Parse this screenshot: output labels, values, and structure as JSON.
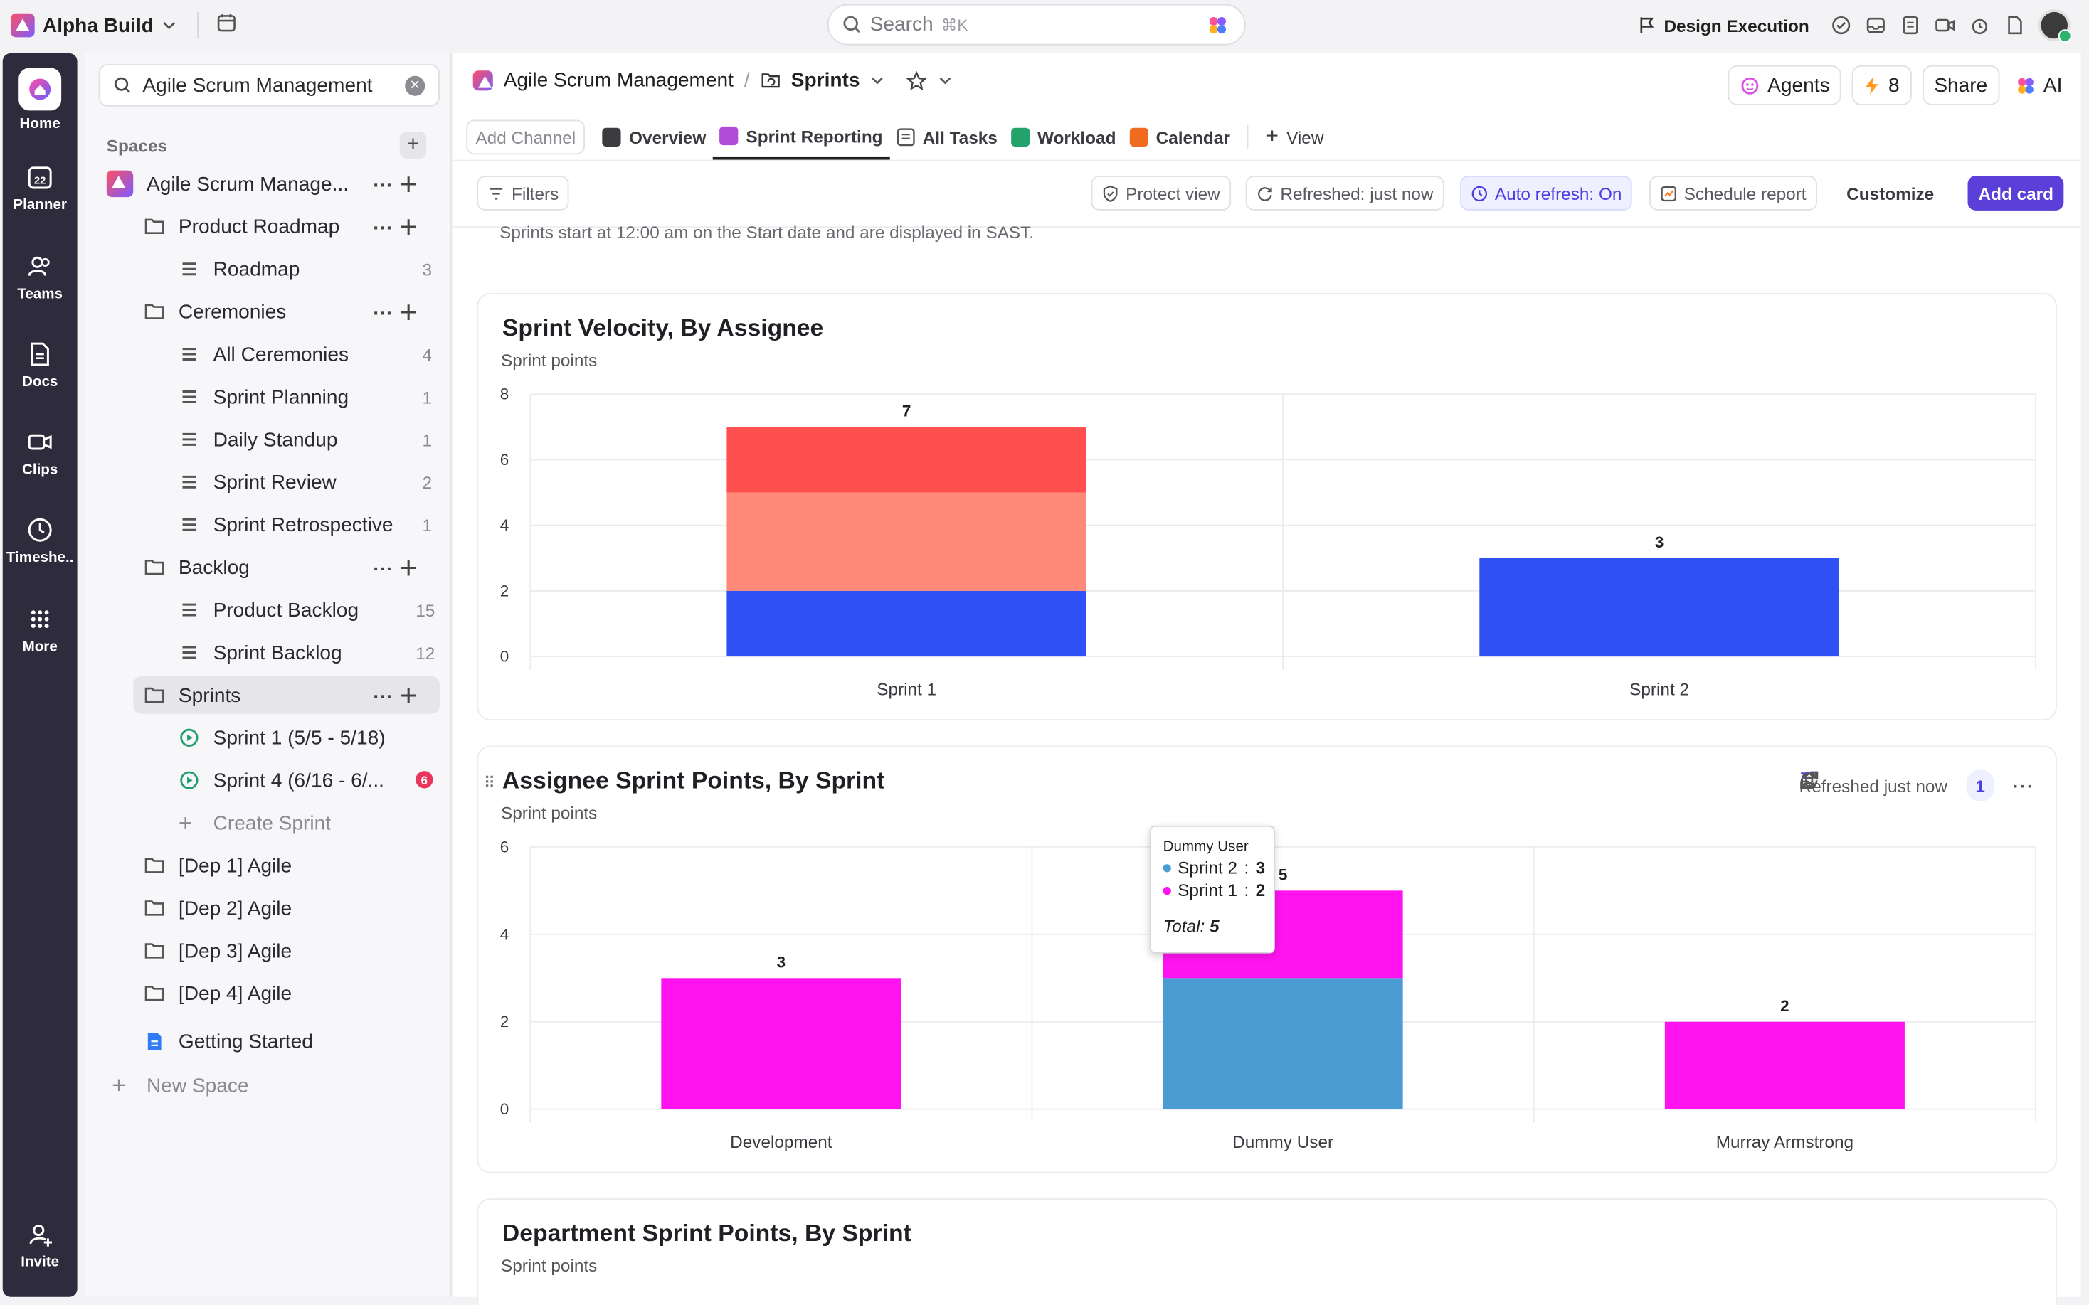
{
  "workspace": {
    "name": "Alpha Build"
  },
  "search": {
    "placeholder": "Search",
    "shortcut": "⌘K"
  },
  "topbar": {
    "flag_label": "Design Execution"
  },
  "leftnav": {
    "items": [
      {
        "label": "Home",
        "icon": "home-icon"
      },
      {
        "label": "Planner",
        "icon": "calendar-icon"
      },
      {
        "label": "Teams",
        "icon": "team-icon"
      },
      {
        "label": "Docs",
        "icon": "doc-icon"
      },
      {
        "label": "Clips",
        "icon": "video-icon"
      },
      {
        "label": "Timeshe..",
        "icon": "clock-icon"
      },
      {
        "label": "More",
        "icon": "grid-icon"
      }
    ],
    "invite": "Invite"
  },
  "sidebar": {
    "search_value": "Agile Scrum Management",
    "spaces_heading": "Spaces",
    "space_name": "Agile Scrum Manage...",
    "tree": [
      {
        "label": "Product Roadmap",
        "type": "folder"
      },
      {
        "label": "Roadmap",
        "count": "3",
        "type": "list"
      },
      {
        "label": "Ceremonies",
        "type": "folder"
      },
      {
        "label": "All Ceremonies",
        "count": "4",
        "type": "list"
      },
      {
        "label": "Sprint Planning",
        "count": "1",
        "type": "list"
      },
      {
        "label": "Daily Standup",
        "count": "1",
        "type": "list"
      },
      {
        "label": "Sprint Review",
        "count": "2",
        "type": "list"
      },
      {
        "label": "Sprint Retrospective",
        "count": "1",
        "type": "list"
      },
      {
        "label": "Backlog",
        "type": "folder"
      },
      {
        "label": "Product Backlog",
        "count": "15",
        "type": "list"
      },
      {
        "label": "Sprint Backlog",
        "count": "12",
        "type": "list"
      },
      {
        "label": "Sprints",
        "type": "folder"
      },
      {
        "label": "Sprint 1 (5/5 - 5/18)",
        "type": "sprint"
      },
      {
        "label": "Sprint 4 (6/16 - 6/...",
        "badge": "6",
        "type": "sprint"
      },
      {
        "label": "Create Sprint",
        "type": "create"
      },
      {
        "label": "[Dep 1] Agile",
        "type": "folder"
      },
      {
        "label": "[Dep 2] Agile",
        "type": "folder"
      },
      {
        "label": "[Dep 3] Agile",
        "type": "folder"
      },
      {
        "label": "[Dep 4] Agile",
        "type": "folder"
      },
      {
        "label": "Getting Started",
        "type": "doc"
      }
    ],
    "new_space": "New Space"
  },
  "header": {
    "space": "Agile Scrum Management",
    "page": "Sprints",
    "agents": "Agents",
    "bolt_count": "8",
    "share": "Share",
    "ai": "AI"
  },
  "views": {
    "add_channel": "Add Channel",
    "tabs": [
      "Overview",
      "Sprint Reporting",
      "All Tasks",
      "Workload",
      "Calendar"
    ],
    "add_view": "View"
  },
  "toolbar": {
    "filters": "Filters",
    "protect": "Protect view",
    "refreshed": "Refreshed: just now",
    "auto_refresh": "Auto refresh: On",
    "schedule": "Schedule report",
    "customize": "Customize",
    "add_card": "Add card"
  },
  "notice": "Sprints start at 12:00 am on the Start date and are displayed in SAST.",
  "colors": {
    "red": "#ff5050",
    "salmon": "#ff8a7a",
    "blue": "#3150f4",
    "magenta": "#ff14f0",
    "steel": "#4a9cd2",
    "accent": "#5a3fd8"
  },
  "chart_data": [
    {
      "type": "bar",
      "stacked": true,
      "title": "Sprint Velocity, By Assignee",
      "subtitle": "Sprint points",
      "categories": [
        "Sprint 1",
        "Sprint 2"
      ],
      "series": [
        {
          "color": "#3150f4",
          "values": [
            2,
            3
          ]
        },
        {
          "color": "#ff8a7a",
          "values": [
            3,
            0
          ]
        },
        {
          "color": "#ff5050",
          "values": [
            2,
            0
          ]
        }
      ],
      "totals": [
        7,
        3
      ],
      "ylim": [
        0,
        8
      ],
      "yticks": [
        0,
        2,
        4,
        6,
        8
      ],
      "grid": true
    },
    {
      "type": "bar",
      "stacked": true,
      "title": "Assignee Sprint Points, By Sprint",
      "subtitle": "Sprint points",
      "refreshed": "Refreshed just now",
      "filter_count": "1",
      "categories": [
        "Development",
        "Dummy User",
        "Murray Armstrong"
      ],
      "series": [
        {
          "name": "Sprint 2",
          "color": "#4a9cd2",
          "values": [
            0,
            3,
            0
          ]
        },
        {
          "name": "Sprint 1",
          "color": "#ff14f0",
          "values": [
            3,
            2,
            2
          ]
        }
      ],
      "totals": [
        3,
        5,
        2
      ],
      "ylim": [
        0,
        6
      ],
      "yticks": [
        0,
        2,
        4,
        6
      ],
      "grid": true,
      "tooltip": {
        "title": "Dummy User",
        "rows": [
          {
            "name": "Sprint 2",
            "value": "3"
          },
          {
            "name": "Sprint 1",
            "value": "2"
          }
        ],
        "total_label": "Total:",
        "total": "5"
      }
    },
    {
      "type": "bar",
      "title": "Department Sprint Points, By Sprint",
      "subtitle": "Sprint points"
    }
  ]
}
